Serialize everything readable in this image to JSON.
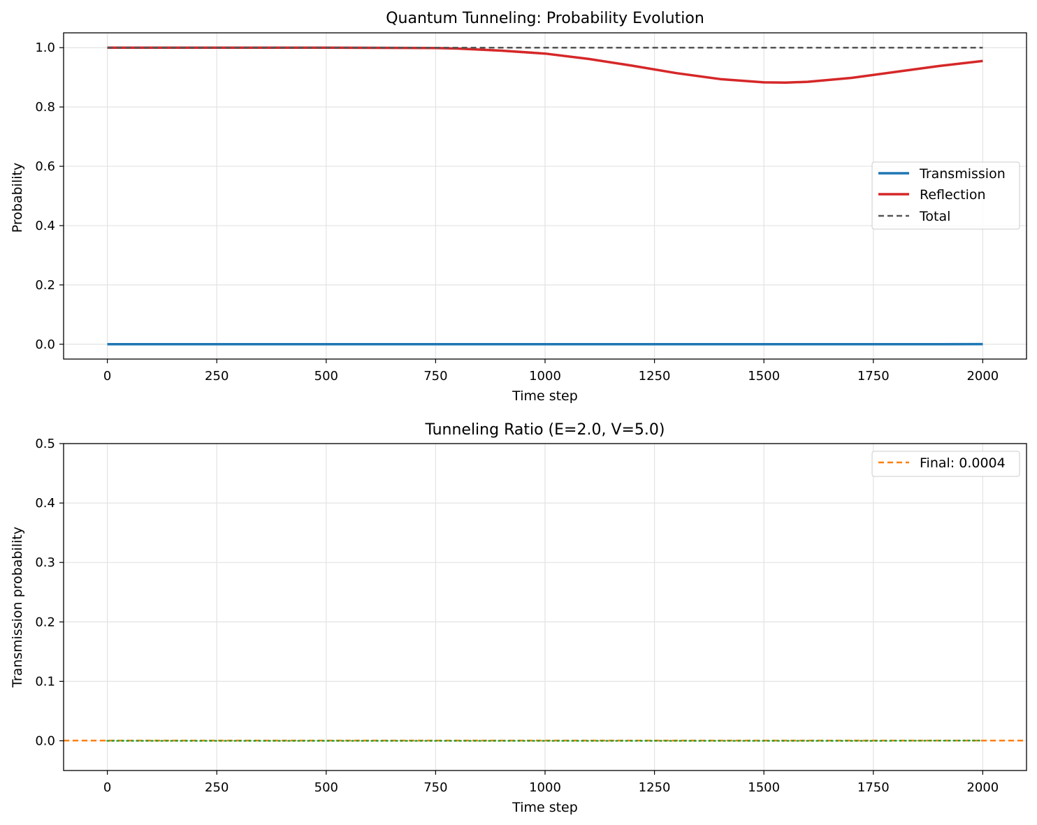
{
  "chart_data": [
    {
      "type": "line",
      "title": "Quantum Tunneling: Probability Evolution",
      "xlabel": "Time step",
      "ylabel": "Probability",
      "xlim": [
        -100,
        2100
      ],
      "ylim": [
        -0.05,
        1.05
      ],
      "xticks": [
        0,
        250,
        500,
        750,
        1000,
        1250,
        1500,
        1750,
        2000
      ],
      "yticks": [
        0.0,
        0.2,
        0.4,
        0.6,
        0.8,
        1.0
      ],
      "xtick_labels": [
        "0",
        "250",
        "500",
        "750",
        "1000",
        "1250",
        "1500",
        "1750",
        "2000"
      ],
      "ytick_labels": [
        "0.0",
        "0.2",
        "0.4",
        "0.6",
        "0.8",
        "1.0"
      ],
      "grid": true,
      "legend_position": "center-right",
      "x": [
        0,
        250,
        500,
        750,
        800,
        900,
        1000,
        1100,
        1200,
        1300,
        1400,
        1500,
        1550,
        1600,
        1700,
        1800,
        1900,
        2000
      ],
      "series": [
        {
          "name": "Transmission",
          "color": "#1f77b4",
          "style": "solid",
          "values": [
            0.0,
            0.0,
            0.0,
            0.0,
            0.0,
            0.0,
            0.0,
            0.0,
            0.0,
            0.0,
            0.0,
            0.0,
            0.0,
            0.0,
            0.0,
            0.0,
            0.0,
            0.0004
          ]
        },
        {
          "name": "Reflection",
          "color": "#d62728",
          "style": "solid",
          "values": [
            1.0,
            1.0,
            1.0,
            0.999,
            0.997,
            0.99,
            0.98,
            0.962,
            0.939,
            0.914,
            0.894,
            0.883,
            0.882,
            0.885,
            0.898,
            0.918,
            0.938,
            0.955
          ]
        },
        {
          "name": "Total",
          "color": "#555555",
          "style": "dashed",
          "values": [
            1.0,
            1.0,
            1.0,
            1.0,
            1.0,
            1.0,
            1.0,
            1.0,
            1.0,
            1.0,
            1.0,
            1.0,
            1.0,
            1.0,
            1.0,
            1.0,
            1.0,
            1.0
          ]
        }
      ]
    },
    {
      "type": "line",
      "title": "Tunneling Ratio (E=2.0, V=5.0)",
      "xlabel": "Time step",
      "ylabel": "Transmission probability",
      "xlim": [
        -100,
        2100
      ],
      "ylim": [
        -0.05,
        0.5
      ],
      "xticks": [
        0,
        250,
        500,
        750,
        1000,
        1250,
        1500,
        1750,
        2000
      ],
      "yticks": [
        0.0,
        0.1,
        0.2,
        0.3,
        0.4,
        0.5
      ],
      "xtick_labels": [
        "0",
        "250",
        "500",
        "750",
        "1000",
        "1250",
        "1500",
        "1750",
        "2000"
      ],
      "ytick_labels": [
        "0.0",
        "0.1",
        "0.2",
        "0.3",
        "0.4",
        "0.5"
      ],
      "grid": true,
      "legend_position": "top-right",
      "x": [
        0,
        250,
        500,
        750,
        1000,
        1250,
        1500,
        1750,
        2000
      ],
      "series": [
        {
          "color": "#2ca02c",
          "style": "dotted",
          "values": [
            0.0,
            0.0,
            0.0,
            0.0,
            0.0,
            0.0,
            0.0,
            0.0,
            0.0004
          ]
        }
      ],
      "hlines": [
        {
          "name": "Final: 0.0004",
          "value": 0.0004,
          "color": "#ff7f0e",
          "style": "dashed"
        }
      ]
    }
  ]
}
